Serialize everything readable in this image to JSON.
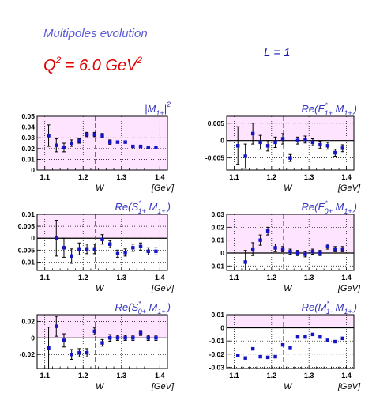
{
  "header": {
    "title": "Multipoles evolution",
    "q2_prefix": "Q",
    "q2_sup": "2",
    "q2_middle": " = 6.0 GeV",
    "q2_unit_sup": "2",
    "l_label": "L = 1"
  },
  "colors": {
    "marker": "#1515c8",
    "shade": "#ffe4ff",
    "dashed_line": "#d8106e",
    "title_text": "#3535c0",
    "grid": "#000000"
  },
  "chart_data": [
    {
      "type": "scatter",
      "title_main": "|M",
      "title_sub": "1+",
      "title_tail": "|",
      "title_sup": "2",
      "xlabel": "W",
      "xunit": "[GeV]",
      "xlim": [
        1.08,
        1.42
      ],
      "ylim": [
        0,
        0.05
      ],
      "xticks": [
        "1.1",
        "1.2",
        "1.3",
        "1.4"
      ],
      "yticks": [
        "0",
        "0.01",
        "0.02",
        "0.03",
        "0.04",
        "0.05"
      ],
      "ytick_values": [
        0,
        0.01,
        0.02,
        0.03,
        0.04,
        0.05
      ],
      "zero_line": false,
      "shade_from": 0,
      "resonance_line": 1.232,
      "points": [
        {
          "x": 1.11,
          "y": 0.032,
          "err": 0.01
        },
        {
          "x": 1.13,
          "y": 0.023,
          "err": 0.006
        },
        {
          "x": 1.15,
          "y": 0.021,
          "err": 0.004
        },
        {
          "x": 1.17,
          "y": 0.025,
          "err": 0.003
        },
        {
          "x": 1.19,
          "y": 0.027,
          "err": 0.002
        },
        {
          "x": 1.21,
          "y": 0.033,
          "err": 0.002
        },
        {
          "x": 1.23,
          "y": 0.033,
          "err": 0.002
        },
        {
          "x": 1.25,
          "y": 0.032,
          "err": 0.002
        },
        {
          "x": 1.27,
          "y": 0.026,
          "err": 0.002
        },
        {
          "x": 1.29,
          "y": 0.026,
          "err": 0.001
        },
        {
          "x": 1.31,
          "y": 0.026,
          "err": 0.001
        },
        {
          "x": 1.33,
          "y": 0.022,
          "err": 0.001
        },
        {
          "x": 1.35,
          "y": 0.022,
          "err": 0.001
        },
        {
          "x": 1.37,
          "y": 0.021,
          "err": 0.001
        },
        {
          "x": 1.39,
          "y": 0.021,
          "err": 0.001
        }
      ]
    },
    {
      "type": "scatter",
      "title_main": "Re(E",
      "title_sub": "1+",
      "title_sup": "*",
      "title_tail": " M",
      "title_sub2": "1+",
      "title_end": ")",
      "xlabel": "W",
      "xunit": "[GeV]",
      "xlim": [
        1.08,
        1.42
      ],
      "ylim": [
        -0.0085,
        0.007
      ],
      "xticks": [
        "1.1",
        "1.2",
        "1.3",
        "1.4"
      ],
      "yticks": [
        "-0.005",
        "0",
        "0.005"
      ],
      "ytick_values": [
        -0.005,
        0,
        0.005
      ],
      "zero_line": true,
      "shade_from": 0,
      "resonance_line": 1.232,
      "points": [
        {
          "x": 1.11,
          "y": -0.0015,
          "err": 0.0055
        },
        {
          "x": 1.13,
          "y": -0.0045,
          "err": 0.0035
        },
        {
          "x": 1.15,
          "y": 0.002,
          "err": 0.003
        },
        {
          "x": 1.17,
          "y": -0.0005,
          "err": 0.002
        },
        {
          "x": 1.19,
          "y": -0.0015,
          "err": 0.0015
        },
        {
          "x": 1.21,
          "y": -0.0005,
          "err": 0.0015
        },
        {
          "x": 1.23,
          "y": 0.0005,
          "err": 0.0015
        },
        {
          "x": 1.25,
          "y": -0.005,
          "err": 0.001
        },
        {
          "x": 1.27,
          "y": 0.0,
          "err": 0.001
        },
        {
          "x": 1.29,
          "y": 0.0003,
          "err": 0.001
        },
        {
          "x": 1.31,
          "y": -0.0005,
          "err": 0.001
        },
        {
          "x": 1.33,
          "y": -0.0012,
          "err": 0.001
        },
        {
          "x": 1.35,
          "y": -0.0015,
          "err": 0.001
        },
        {
          "x": 1.37,
          "y": -0.0035,
          "err": 0.001
        },
        {
          "x": 1.39,
          "y": -0.0022,
          "err": 0.001
        }
      ]
    },
    {
      "type": "scatter",
      "title_main": "Re(S",
      "title_sub": "1+",
      "title_sup": "*",
      "title_tail": " M",
      "title_sub2": "1+",
      "title_end": ")",
      "xlabel": "W",
      "xunit": "[GeV]",
      "xlim": [
        1.08,
        1.42
      ],
      "ylim": [
        -0.0135,
        0.01
      ],
      "xticks": [
        "1.1",
        "1.2",
        "1.3",
        "1.4"
      ],
      "yticks": [
        "-0.01",
        "-0.005",
        "0",
        "0.005",
        "0.01"
      ],
      "ytick_values": [
        -0.01,
        -0.005,
        0,
        0.005,
        0.01
      ],
      "zero_line": true,
      "shade_from": 0,
      "resonance_line": 1.232,
      "points": [
        {
          "x": 1.13,
          "y": 0.0,
          "err": 0.0075
        },
        {
          "x": 1.15,
          "y": -0.004,
          "err": 0.004
        },
        {
          "x": 1.17,
          "y": -0.0075,
          "err": 0.003
        },
        {
          "x": 1.19,
          "y": -0.0045,
          "err": 0.0025
        },
        {
          "x": 1.21,
          "y": -0.0045,
          "err": 0.002
        },
        {
          "x": 1.23,
          "y": -0.0045,
          "err": 0.002
        },
        {
          "x": 1.25,
          "y": -0.0005,
          "err": 0.002
        },
        {
          "x": 1.27,
          "y": -0.0025,
          "err": 0.0015
        },
        {
          "x": 1.29,
          "y": -0.0065,
          "err": 0.0015
        },
        {
          "x": 1.31,
          "y": -0.006,
          "err": 0.0015
        },
        {
          "x": 1.33,
          "y": -0.004,
          "err": 0.0015
        },
        {
          "x": 1.35,
          "y": -0.0035,
          "err": 0.0015
        },
        {
          "x": 1.37,
          "y": -0.0055,
          "err": 0.0015
        },
        {
          "x": 1.39,
          "y": -0.0055,
          "err": 0.0015
        }
      ]
    },
    {
      "type": "scatter",
      "title_main": "Re(E",
      "title_sub": "0+",
      "title_sup": "*",
      "title_tail": " M",
      "title_sub2": "1+",
      "title_end": ")",
      "xlabel": "W",
      "xunit": "[GeV]",
      "xlim": [
        1.08,
        1.42
      ],
      "ylim": [
        -0.0135,
        0.03
      ],
      "xticks": [
        "1.1",
        "1.2",
        "1.3",
        "1.4"
      ],
      "yticks": [
        "-0.01",
        "0",
        "0.01",
        "0.02",
        "0.03"
      ],
      "ytick_values": [
        -0.01,
        0,
        0.01,
        0.02,
        0.03
      ],
      "zero_line": true,
      "shade_from": 0,
      "resonance_line": 1.232,
      "points": [
        {
          "x": 1.13,
          "y": -0.007,
          "err": 0.009
        },
        {
          "x": 1.15,
          "y": 0.003,
          "err": 0.005
        },
        {
          "x": 1.17,
          "y": 0.01,
          "err": 0.004
        },
        {
          "x": 1.19,
          "y": 0.017,
          "err": 0.003
        },
        {
          "x": 1.21,
          "y": 0.004,
          "err": 0.003
        },
        {
          "x": 1.23,
          "y": 0.003,
          "err": 0.002
        },
        {
          "x": 1.25,
          "y": 0.001,
          "err": 0.002
        },
        {
          "x": 1.27,
          "y": 0.0,
          "err": 0.002
        },
        {
          "x": 1.29,
          "y": -0.001,
          "err": 0.002
        },
        {
          "x": 1.31,
          "y": 0.001,
          "err": 0.002
        },
        {
          "x": 1.33,
          "y": 0.0,
          "err": 0.002
        },
        {
          "x": 1.35,
          "y": 0.005,
          "err": 0.002
        },
        {
          "x": 1.37,
          "y": 0.003,
          "err": 0.002
        },
        {
          "x": 1.39,
          "y": 0.003,
          "err": 0.002
        }
      ]
    },
    {
      "type": "scatter",
      "title_main": "Re(S",
      "title_sub": "0+",
      "title_sup": "*",
      "title_tail": " M",
      "title_sub2": "1+",
      "title_end": ")",
      "xlabel": "W",
      "xunit": "[GeV]",
      "xlim": [
        1.08,
        1.42
      ],
      "ylim": [
        -0.037,
        0.028
      ],
      "xticks": [
        "1.1",
        "1.2",
        "1.3",
        "1.4"
      ],
      "yticks": [
        "-0.02",
        "0",
        "0.02"
      ],
      "ytick_values": [
        -0.02,
        0,
        0.02
      ],
      "zero_line": true,
      "shade_from": 0,
      "resonance_line": 1.232,
      "points": [
        {
          "x": 1.11,
          "y": -0.012,
          "err": 0.025
        },
        {
          "x": 1.13,
          "y": 0.014,
          "err": 0.012
        },
        {
          "x": 1.15,
          "y": -0.003,
          "err": 0.008
        },
        {
          "x": 1.17,
          "y": -0.02,
          "err": 0.006
        },
        {
          "x": 1.19,
          "y": -0.018,
          "err": 0.005
        },
        {
          "x": 1.21,
          "y": -0.018,
          "err": 0.005
        },
        {
          "x": 1.23,
          "y": 0.008,
          "err": 0.004
        },
        {
          "x": 1.25,
          "y": -0.006,
          "err": 0.004
        },
        {
          "x": 1.27,
          "y": 0.0,
          "err": 0.004
        },
        {
          "x": 1.29,
          "y": 0.0,
          "err": 0.003
        },
        {
          "x": 1.31,
          "y": 0.0,
          "err": 0.003
        },
        {
          "x": 1.33,
          "y": 0.0,
          "err": 0.003
        },
        {
          "x": 1.35,
          "y": 0.006,
          "err": 0.003
        },
        {
          "x": 1.37,
          "y": 0.0,
          "err": 0.003
        },
        {
          "x": 1.39,
          "y": 0.0,
          "err": 0.003
        }
      ]
    },
    {
      "type": "scatter",
      "title_main": "Re(M",
      "title_sub": "1-",
      "title_sup": "*",
      "title_tail": " M",
      "title_sub2": "1+",
      "title_end": ")",
      "xlabel": "W",
      "xunit": "[GeV]",
      "xlim": [
        1.08,
        1.42
      ],
      "ylim": [
        -0.031,
        0.01
      ],
      "xticks": [
        "1.1",
        "1.2",
        "1.3",
        "1.4"
      ],
      "yticks": [
        "-0.03",
        "-0.02",
        "-0.01",
        "0",
        "0.01"
      ],
      "ytick_values": [
        -0.03,
        -0.02,
        -0.01,
        0,
        0.01
      ],
      "zero_line": true,
      "shade_from": 0,
      "resonance_line": 1.232,
      "points": [
        {
          "x": 1.11,
          "y": -0.021,
          "err": 0.0005
        },
        {
          "x": 1.13,
          "y": -0.023,
          "err": 0.0005
        },
        {
          "x": 1.15,
          "y": -0.016,
          "err": 0.0005
        },
        {
          "x": 1.17,
          "y": -0.022,
          "err": 0.0005
        },
        {
          "x": 1.19,
          "y": -0.0225,
          "err": 0.0005
        },
        {
          "x": 1.21,
          "y": -0.022,
          "err": 0.0005
        },
        {
          "x": 1.23,
          "y": -0.013,
          "err": 0.0005
        },
        {
          "x": 1.25,
          "y": -0.015,
          "err": 0.0005
        },
        {
          "x": 1.27,
          "y": -0.007,
          "err": 0.0005
        },
        {
          "x": 1.29,
          "y": -0.007,
          "err": 0.0005
        },
        {
          "x": 1.31,
          "y": -0.005,
          "err": 0.0005
        },
        {
          "x": 1.33,
          "y": -0.007,
          "err": 0.0005
        },
        {
          "x": 1.35,
          "y": -0.0095,
          "err": 0.0005
        },
        {
          "x": 1.37,
          "y": -0.0105,
          "err": 0.0005
        },
        {
          "x": 1.39,
          "y": -0.008,
          "err": 0.0005
        }
      ]
    }
  ]
}
